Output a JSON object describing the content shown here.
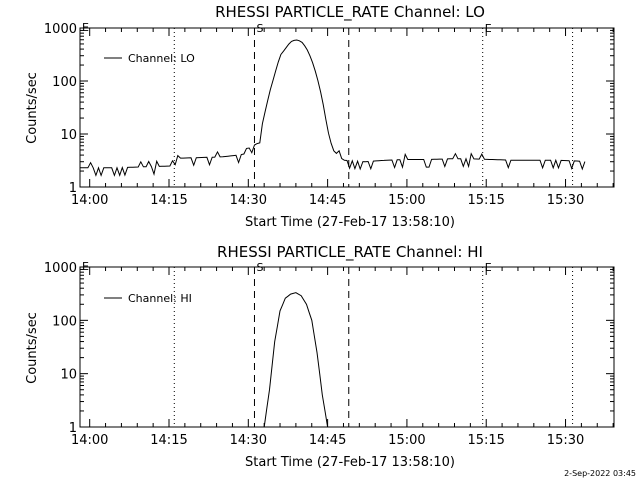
{
  "footer": {
    "timestamp": "2-Sep-2022 03:45"
  },
  "chart_data": [
    {
      "type": "line",
      "title": "RHESSI PARTICLE_RATE Channel: LO",
      "xlabel": "Start Time (27-Feb-17 13:58:10)",
      "ylabel": "Counts/sec",
      "yscale": "log",
      "ylim": [
        1,
        1000
      ],
      "xlim": [
        "13:58:10",
        "15:39:10"
      ],
      "xtick_labels": [
        "14:00",
        "14:15",
        "14:30",
        "14:45",
        "15:00",
        "15:15",
        "15:30"
      ],
      "ytick_labels": [
        "1",
        "10",
        "100",
        "1000"
      ],
      "legend": {
        "position": "top-left",
        "entries": [
          "Channel: LO"
        ]
      },
      "markers": [
        {
          "time": "14:16:00",
          "style": "dotted",
          "label": ""
        },
        {
          "time": "14:31:10",
          "style": "dashed",
          "label": "S"
        },
        {
          "time": "14:49:00",
          "style": "dashed",
          "label": ""
        },
        {
          "time": "15:14:20",
          "style": "dotted",
          "label": "E"
        },
        {
          "time": "15:31:20",
          "style": "dotted",
          "label": ""
        }
      ],
      "corner_labels": [
        "E"
      ],
      "series": [
        {
          "name": "Channel: LO",
          "x": [
            "13:58:10",
            "14:05:00",
            "14:10:00",
            "14:16:00",
            "14:17:00",
            "14:25:00",
            "14:28:00",
            "14:31:00",
            "14:32:00",
            "14:34:00",
            "14:36:00",
            "14:38:00",
            "14:39:00",
            "14:40:00",
            "14:41:00",
            "14:42:00",
            "14:43:00",
            "14:44:00",
            "14:45:00",
            "14:46:00",
            "14:48:00",
            "14:52:00",
            "14:56:00",
            "15:00:00",
            "15:04:00",
            "15:08:00",
            "15:12:00",
            "15:16:00",
            "15:20:00",
            "15:24:00",
            "15:28:00",
            "15:32:00",
            "15:34:00"
          ],
          "y": [
            2.3,
            2.3,
            2.4,
            2.5,
            3.5,
            3.7,
            4.0,
            4.5,
            8,
            60,
            300,
            550,
            600,
            560,
            420,
            250,
            120,
            45,
            12,
            5,
            3.2,
            3.0,
            3.2,
            3.3,
            3.3,
            3.4,
            3.4,
            3.3,
            3.2,
            3.2,
            3.2,
            3.1,
            3.0
          ]
        }
      ]
    },
    {
      "type": "line",
      "title": "RHESSI PARTICLE_RATE Channel: HI",
      "xlabel": "Start Time (27-Feb-17 13:58:10)",
      "ylabel": "Counts/sec",
      "yscale": "log",
      "ylim": [
        1,
        1000
      ],
      "xlim": [
        "13:58:10",
        "15:39:10"
      ],
      "xtick_labels": [
        "14:00",
        "14:15",
        "14:30",
        "14:45",
        "15:00",
        "15:15",
        "15:30"
      ],
      "ytick_labels": [
        "1",
        "10",
        "100",
        "1000"
      ],
      "legend": {
        "position": "top-left",
        "entries": [
          "Channel: HI"
        ]
      },
      "markers": [
        {
          "time": "14:16:00",
          "style": "dotted",
          "label": ""
        },
        {
          "time": "14:31:10",
          "style": "dashed",
          "label": "S"
        },
        {
          "time": "14:49:00",
          "style": "dashed",
          "label": ""
        },
        {
          "time": "15:14:20",
          "style": "dotted",
          "label": "E"
        },
        {
          "time": "15:31:20",
          "style": "dotted",
          "label": ""
        }
      ],
      "corner_labels": [
        "E"
      ],
      "series": [
        {
          "name": "Channel: HI",
          "x": [
            "14:33:00",
            "14:34:00",
            "14:35:00",
            "14:36:00",
            "14:37:00",
            "14:38:00",
            "14:39:00",
            "14:40:00",
            "14:41:00",
            "14:42:00",
            "14:43:00",
            "14:44:00",
            "14:45:00"
          ],
          "y": [
            1.0,
            5,
            40,
            150,
            260,
            310,
            330,
            290,
            200,
            100,
            25,
            4,
            1.0
          ]
        }
      ]
    }
  ]
}
